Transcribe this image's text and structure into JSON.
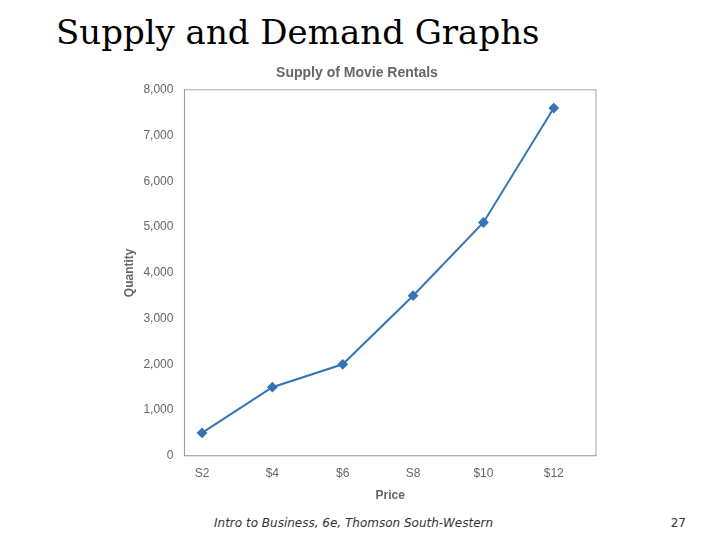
{
  "chart_data": {
    "type": "line",
    "title": "Supply and Demand Graphs",
    "subtitle": "Supply of Movie Rentals",
    "x_label": "Price",
    "y_label": "Quantity",
    "x": [
      2,
      4,
      6,
      8,
      10,
      12
    ],
    "values": [
      500,
      1500,
      2000,
      3500,
      5100,
      7600
    ],
    "color": "#3375b5",
    "marker": "diamond",
    "xlim": [
      1.5,
      13.2
    ],
    "xticks": [
      {
        "value": 2,
        "label": "S2"
      },
      {
        "value": 4,
        "label": "$4"
      },
      {
        "value": 6,
        "label": "$6"
      },
      {
        "value": 8,
        "label": "S8"
      },
      {
        "value": 10,
        "label": "$10"
      },
      {
        "value": 12,
        "label": "$12"
      }
    ],
    "ylim": [
      0,
      8000
    ],
    "yticks": [
      0,
      {
        "value": 1000,
        "label": "1,000"
      },
      {
        "value": 2000,
        "label": "2,000"
      },
      {
        "value": 3000,
        "label": "3,000"
      },
      {
        "value": 4000,
        "label": "4,000"
      },
      {
        "value": 5000,
        "label": "5,000"
      },
      {
        "value": 6000,
        "label": "6,000"
      },
      {
        "value": 7000,
        "label": "7,000"
      },
      {
        "value": 8000,
        "label": "8,000"
      }
    ],
    "grid": false,
    "annotations": [
      "Intro to Business, 6e, Thomson South-Western",
      "27"
    ]
  }
}
